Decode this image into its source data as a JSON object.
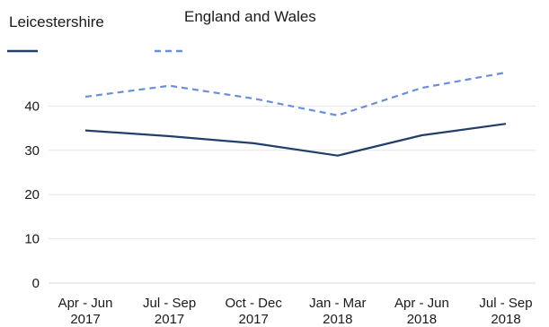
{
  "chart_data": {
    "type": "line",
    "title": "",
    "xlabel": "",
    "ylabel": "",
    "categories": [
      [
        "Apr - Jun",
        "2017"
      ],
      [
        "Jul - Sep",
        "2017"
      ],
      [
        "Oct - Dec",
        "2017"
      ],
      [
        "Jan - Mar",
        "2018"
      ],
      [
        "Apr - Jun",
        "2018"
      ],
      [
        "Jul - Sep",
        "2018"
      ]
    ],
    "series": [
      {
        "name": "Leicestershire",
        "values": [
          34.5,
          33.2,
          31.6,
          28.8,
          33.4,
          36.0
        ],
        "color": "#223f6b",
        "style": "solid"
      },
      {
        "name": "England and Wales",
        "values": [
          42.1,
          44.6,
          41.7,
          37.9,
          44.1,
          47.6
        ],
        "color": "#6b8fd6",
        "style": "dashed"
      }
    ],
    "ylim": [
      0,
      50
    ],
    "yticks": [
      0,
      10,
      20,
      30,
      40
    ],
    "grid": true,
    "legend_position": "top-left"
  }
}
